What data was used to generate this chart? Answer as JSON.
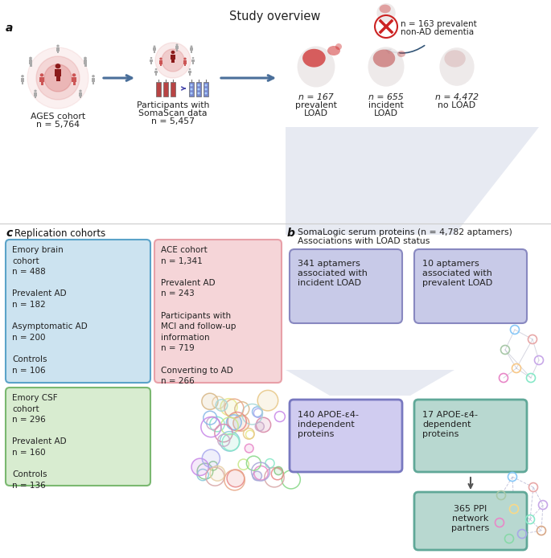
{
  "title": "Study overview",
  "ages_cohort_line1": "AGES cohort",
  "ages_cohort_line2": "n = 5,764",
  "somascan_line1": "Participants with",
  "somascan_line2": "SomaScan data",
  "somascan_line3": "n = 5,457",
  "prevalent_load_line1": "n = 167",
  "prevalent_load_line2": "prevalent",
  "prevalent_load_line3": "LOAD",
  "incident_load_line1": "n = 655",
  "incident_load_line2": "incident",
  "incident_load_line3": "LOAD",
  "no_load_line1": "n = 4,472",
  "no_load_line2": "no LOAD",
  "excluded_line1": "n = 163 prevalent",
  "excluded_line2": "non-AD dementia",
  "soma_title_line1": "SomaLogic serum proteins (n = 4,782 aptamers)",
  "soma_title_line2": "Associations with LOAD status",
  "box_341_text": "341 aptamers\nassociated with\nincident LOAD",
  "box_10_text": "10 aptamers\nassociated with\nprevalent LOAD",
  "box_140_text": "140 APOE-ε4-\nindependent\nproteins",
  "box_17_text": "17 APOE-ε4-\ndependent\nproteins",
  "box_365_text": "365 PPI\nnetwork\npartners",
  "replication_text": "Replication cohorts",
  "emory_brain_text": "Emory brain\ncohort\nn = 488\n\nPrevalent AD\nn = 182\n\nAsymptomatic AD\nn = 200\n\nControls\nn = 106",
  "ace_text": "ACE cohort\nn = 1,341\n\nPrevalent AD\nn = 243\n\nParticipants with\nMCI and follow-up\ninformation\nn = 719\n\nConverting to AD\nn = 266",
  "emory_csf_text": "Emory CSF\ncohort\nn = 296\n\nPrevalent AD\nn = 160\n\nControls\nn = 136",
  "c_blue_bg": "#cce3f0",
  "c_blue_bd": "#5ba3c9",
  "c_pink_bg": "#f5d5d8",
  "c_pink_bd": "#e8a0a8",
  "c_green_bg": "#d8ecd0",
  "c_green_bd": "#7ab870",
  "c_purple_bg": "#c8cae8",
  "c_purple_bd": "#8888c0",
  "c_purple2_bg": "#d0ccf0",
  "c_purple2_bd": "#7878c0",
  "c_teal_bg": "#b8d8d0",
  "c_teal_bd": "#60a898",
  "c_funnel": "#d4d9e8",
  "c_arrow": "#4a6f9a",
  "c_dark_red": "#8b1a1a",
  "c_mid_red": "#b84444",
  "c_light_red": "#cc8888",
  "c_gray_person": "#aaaaaa",
  "c_pink_person": "#cc5555",
  "c_text": "#333333"
}
